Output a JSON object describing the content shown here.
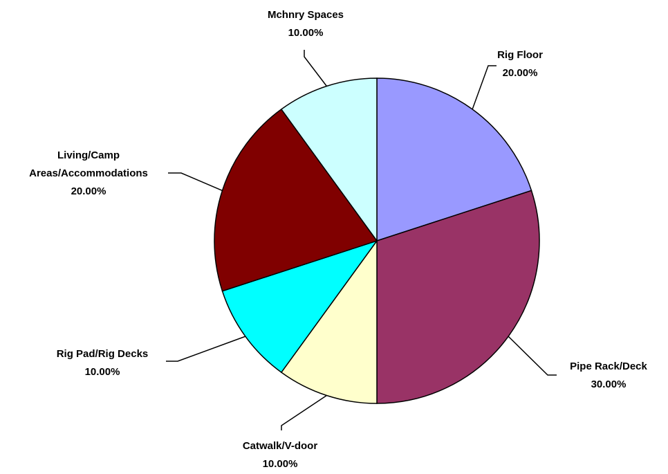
{
  "chart_data": {
    "type": "pie",
    "categories": [
      "Rig Floor",
      "Pipe Rack/Deck",
      "Catwalk/V-door",
      "Rig Pad/Rig Decks",
      "Living/Camp Areas/Accommodations",
      "Mchnry Spaces"
    ],
    "values": [
      20,
      30,
      10,
      10,
      20,
      10
    ],
    "value_labels": [
      "20.00%",
      "30.00%",
      "10.00%",
      "10.00%",
      "20.00%",
      "10.00%"
    ],
    "colors": [
      "#9999ff",
      "#993366",
      "#ffffcc",
      "#00ffff",
      "#800000",
      "#ccffff"
    ]
  }
}
